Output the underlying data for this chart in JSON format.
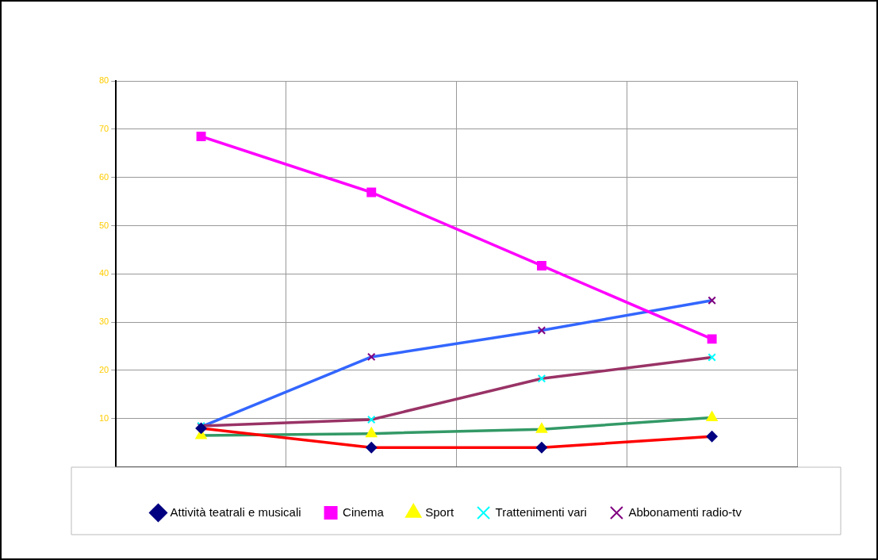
{
  "chart_data": {
    "type": "line",
    "categories": [
      null,
      null,
      null,
      null
    ],
    "ylim": [
      0,
      80
    ],
    "yticks": [
      10,
      20,
      30,
      40,
      50,
      60,
      70,
      80
    ],
    "grid": true,
    "legend": "bottom",
    "line_style": "solid",
    "series": [
      {
        "name": "Attività teatrali e musicali",
        "color": "#ff0000",
        "colors": [
          "#000080",
          "#000080",
          "#000080",
          "#000080"
        ],
        "marker": "diamond",
        "values": [
          8.0,
          4.0,
          4.0,
          6.3
        ]
      },
      {
        "name": "Cinema",
        "color": "#ff00ff",
        "colors": [
          "#ff00ff",
          "#ff00ff",
          "#ff00ff",
          "#ff00ff"
        ],
        "marker": "square",
        "values": [
          68.5,
          56.9,
          41.7,
          26.5
        ]
      },
      {
        "name": "Sport",
        "color": "#339966",
        "colors": [
          "#ffff00",
          "#ffff00",
          "#ffff00",
          "#ffff00"
        ],
        "marker": "triangle",
        "values": [
          6.5,
          6.9,
          7.8,
          10.2
        ]
      },
      {
        "name": "Trattenimenti vari",
        "color": "#993366",
        "colors": [
          "#00ffff",
          "#00ffff",
          "#00ffff",
          "#00ffff"
        ],
        "marker": "cross",
        "values": [
          8.5,
          9.8,
          18.3,
          22.7
        ]
      },
      {
        "name": "Abbonamenti radio-tv",
        "color": "#3366ff",
        "colors": [
          "#800080",
          "#800080",
          "#800080",
          "#800080"
        ],
        "marker": "cross",
        "values": [
          8.3,
          22.8,
          28.3,
          34.5
        ]
      }
    ]
  }
}
